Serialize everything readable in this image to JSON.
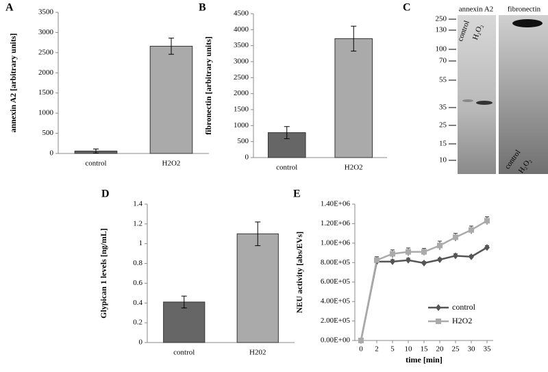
{
  "chart_data": [
    {
      "type": "bar",
      "panel": "A",
      "ylabel": "annexin A2 [arbitrary units]",
      "categories": [
        "control",
        "H2O2"
      ],
      "values": [
        60,
        2660
      ],
      "errors": [
        50,
        200
      ],
      "colors": [
        "#666666",
        "#aaaaaa"
      ],
      "ylim": [
        0,
        3500
      ],
      "yticks": [
        0,
        500,
        1000,
        1500,
        2000,
        2500,
        3000,
        3500
      ]
    },
    {
      "type": "bar",
      "panel": "B",
      "ylabel": "fibronectin [arbitrary units]",
      "categories": [
        "control",
        "H2O2"
      ],
      "values": [
        780,
        3720
      ],
      "errors": [
        190,
        390
      ],
      "colors": [
        "#666666",
        "#aaaaaa"
      ],
      "ylim": [
        0,
        4500
      ],
      "yticks": [
        0,
        500,
        1000,
        1500,
        2000,
        2500,
        3000,
        3500,
        4000,
        4500
      ]
    },
    {
      "type": "bar",
      "panel": "D",
      "ylabel": "Glypican 1 levels [ng/mL]",
      "categories": [
        "control",
        "H202"
      ],
      "values": [
        0.41,
        1.1
      ],
      "errors": [
        0.06,
        0.12
      ],
      "colors": [
        "#666666",
        "#aaaaaa"
      ],
      "ylim": [
        0,
        1.4
      ],
      "yticks": [
        0,
        0.2,
        0.4,
        0.6,
        0.8,
        1,
        1.2,
        1.4
      ]
    },
    {
      "type": "line",
      "panel": "E",
      "ylabel": "NEU activity [abs/EVs]",
      "xlabel": "time [min]",
      "categories": [
        "0",
        "2",
        "5",
        "10",
        "15",
        "20",
        "25",
        "30",
        "35"
      ],
      "series": [
        {
          "name": "control",
          "color": "#555555",
          "marker": "diamond",
          "values": [
            0,
            810000,
            810000,
            825000,
            795000,
            830000,
            870000,
            860000,
            955000
          ],
          "errors": [
            0,
            20000,
            20000,
            20000,
            15000,
            15000,
            20000,
            15000,
            20000
          ]
        },
        {
          "name": "H2O2",
          "color": "#aaaaaa",
          "marker": "square",
          "values": [
            0,
            825000,
            890000,
            910000,
            910000,
            975000,
            1060000,
            1135000,
            1230000
          ],
          "errors": [
            0,
            35000,
            40000,
            40000,
            35000,
            45000,
            40000,
            40000,
            40000
          ]
        }
      ],
      "ylim": [
        0,
        1400000
      ],
      "yticks": [
        {
          "value": 0,
          "label": "0.00E+00"
        },
        {
          "value": 200000,
          "label": "2.00E+05"
        },
        {
          "value": 400000,
          "label": "4.00E+05"
        },
        {
          "value": 600000,
          "label": "6.00E+05"
        },
        {
          "value": 800000,
          "label": "8.00E+05"
        },
        {
          "value": 1000000,
          "label": "1.00E+06"
        },
        {
          "value": 1200000,
          "label": "1.20E+06"
        },
        {
          "value": 1400000,
          "label": "1.40E+06"
        }
      ],
      "legend": "lower right"
    }
  ],
  "blot": {
    "panel": "C",
    "lanes": [
      "annexin A2",
      "fibronectin"
    ],
    "markers": [
      "250",
      "130",
      "100",
      "70",
      "55",
      "35",
      "25",
      "15",
      "10"
    ],
    "lane_labels": [
      "control",
      "H₂O₂"
    ]
  }
}
